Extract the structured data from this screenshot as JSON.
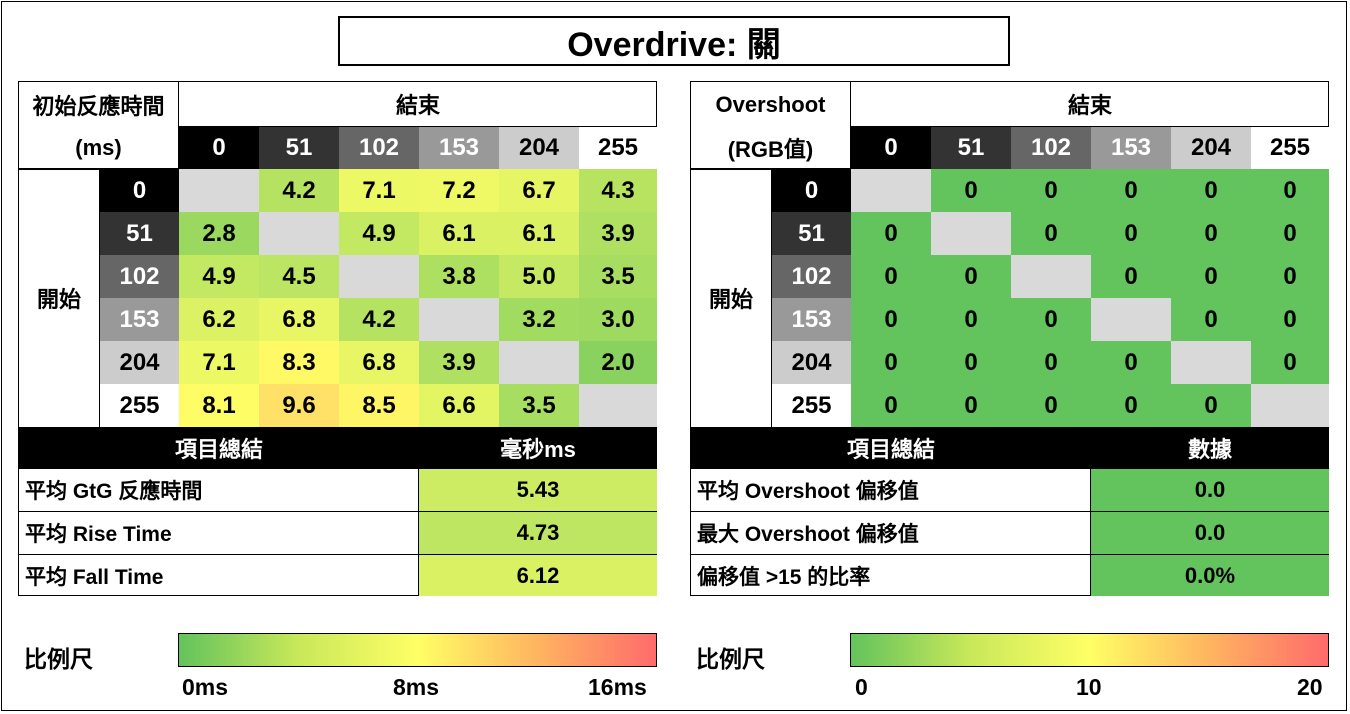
{
  "title": "Overdrive: 關",
  "left_panel": {
    "corner_line1": "初始反應時間",
    "corner_line2": "(ms)",
    "end_label": "結束",
    "start_label": "開始",
    "levels": [
      "0",
      "51",
      "102",
      "153",
      "204",
      "255"
    ],
    "summary_header": "項目總結",
    "summary_value_header": "毫秒ms",
    "summary_rows": [
      {
        "label": "平均 GtG 反應時間",
        "value": "5.43"
      },
      {
        "label": "平均 Rise Time",
        "value": "4.73"
      },
      {
        "label": "平均 Fall Time",
        "value": "6.12"
      }
    ]
  },
  "right_panel": {
    "corner_line1": "Overshoot",
    "corner_line2": "(RGB值)",
    "end_label": "結束",
    "start_label": "開始",
    "levels": [
      "0",
      "51",
      "102",
      "153",
      "204",
      "255"
    ],
    "summary_header": "項目總結",
    "summary_value_header": "數據",
    "summary_rows": [
      {
        "label": "平均 Overshoot 偏移值",
        "value": "0.0"
      },
      {
        "label": "最大 Overshoot 偏移值",
        "value": "0.0"
      },
      {
        "label": "偏移值 >15 的比率",
        "value": "0.0%"
      }
    ]
  },
  "left_scale": {
    "label": "比例尺",
    "ticks": [
      "0ms",
      "8ms",
      "16ms"
    ]
  },
  "right_scale": {
    "label": "比例尺",
    "ticks": [
      "0",
      "10",
      "20"
    ]
  },
  "colors": {
    "level_backgrounds": [
      "#000000",
      "#333333",
      "#666666",
      "#999999",
      "#cccccc",
      "#ffffff"
    ],
    "diagonal": "#d9d9d9",
    "low": "#63c35c",
    "mid": "#ffff66",
    "high": "#ff6b6b"
  },
  "chart_data": [
    {
      "type": "heatmap",
      "title": "初始反應時間 (ms)",
      "xlabel": "結束",
      "ylabel": "開始",
      "x": [
        "0",
        "51",
        "102",
        "153",
        "204",
        "255"
      ],
      "y": [
        "0",
        "51",
        "102",
        "153",
        "204",
        "255"
      ],
      "values": [
        [
          null,
          4.2,
          7.1,
          7.2,
          6.7,
          4.3
        ],
        [
          2.8,
          null,
          4.9,
          6.1,
          6.1,
          3.9
        ],
        [
          4.9,
          4.5,
          null,
          3.8,
          5.0,
          3.5
        ],
        [
          6.2,
          6.8,
          4.2,
          null,
          3.2,
          3.0
        ],
        [
          7.1,
          8.3,
          6.8,
          3.9,
          null,
          2.0
        ],
        [
          8.1,
          9.6,
          8.5,
          6.6,
          3.5,
          null
        ]
      ],
      "color_range": [
        0,
        16
      ]
    },
    {
      "type": "heatmap",
      "title": "Overshoot (RGB值)",
      "xlabel": "結束",
      "ylabel": "開始",
      "x": [
        "0",
        "51",
        "102",
        "153",
        "204",
        "255"
      ],
      "y": [
        "0",
        "51",
        "102",
        "153",
        "204",
        "255"
      ],
      "values": [
        [
          null,
          0,
          0,
          0,
          0,
          0
        ],
        [
          0,
          null,
          0,
          0,
          0,
          0
        ],
        [
          0,
          0,
          null,
          0,
          0,
          0
        ],
        [
          0,
          0,
          0,
          null,
          0,
          0
        ],
        [
          0,
          0,
          0,
          0,
          null,
          0
        ],
        [
          0,
          0,
          0,
          0,
          0,
          null
        ]
      ],
      "color_range": [
        0,
        20
      ]
    }
  ]
}
